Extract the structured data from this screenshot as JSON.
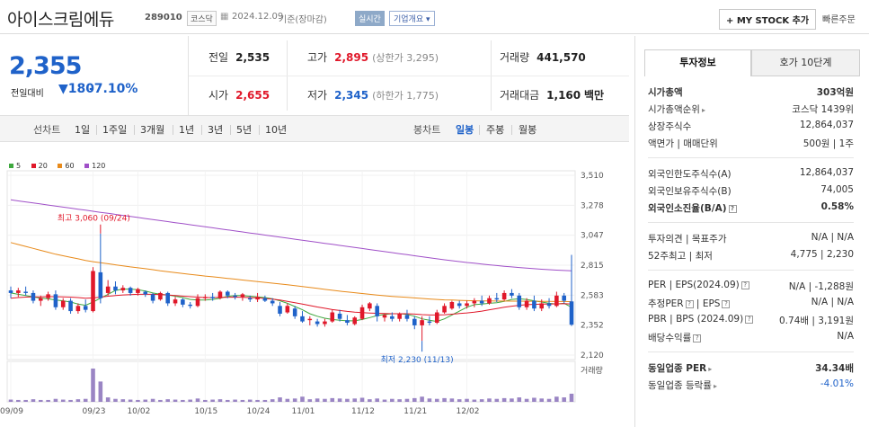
{
  "header": {
    "company": "아이스크림에듀",
    "code": "289010",
    "market": "코스닥",
    "date": "2024.12.09",
    "basis": "기준(장마감)",
    "realtime": "실시간",
    "company_info": "기업개요",
    "my_stock": "+ MY STOCK 추가",
    "quick_order": "빠른주문"
  },
  "summary": {
    "price": "2,355",
    "change_label": "전일대비",
    "change_value": "▼180",
    "change_pct": "-7.10%",
    "prev_label": "전일",
    "prev": "2,535",
    "high_label": "고가",
    "high": "2,895",
    "upper": "(상한가 3,295)",
    "volume_label": "거래량",
    "volume": "441,570",
    "open_label": "시가",
    "open": "2,655",
    "low_label": "저가",
    "low": "2,345",
    "lower": "(하한가 1,775)",
    "amount_label": "거래대금",
    "amount": "1,160",
    "amount_unit": "백만"
  },
  "toolbar": {
    "line_chart": "선차트",
    "d1": "1일",
    "w1": "1주일",
    "m3": "3개월",
    "y1": "1년",
    "y3": "3년",
    "y5": "5년",
    "y10": "10년",
    "candle": "봉차트",
    "daily": "일봉",
    "weekly": "주봉",
    "monthly": "월봉"
  },
  "chart_data": {
    "type": "candlestick",
    "legend": [
      "5",
      "20",
      "60",
      "120"
    ],
    "legend_colors": [
      "#3ea83e",
      "#e0182a",
      "#e88a1a",
      "#a050c8"
    ],
    "y_ticks": [
      "3,510",
      "3,278",
      "3,047",
      "2,815",
      "2,583",
      "2,352",
      "2,120"
    ],
    "x_ticks": [
      "09/09",
      "09/23",
      "10/02",
      "10/15",
      "10/24",
      "11/01",
      "11/12",
      "11/21",
      "12/02"
    ],
    "volume_label": "거래량",
    "high_annotation": "최고 3,060 (09/24)",
    "low_annotation": "최저 2,230 (11/13)",
    "ylim": [
      2120,
      3510
    ],
    "candles": [
      [
        2620,
        2650,
        2560,
        2600
      ],
      [
        2600,
        2640,
        2570,
        2620
      ],
      [
        2610,
        2650,
        2580,
        2600
      ],
      [
        2600,
        2620,
        2520,
        2540
      ],
      [
        2540,
        2580,
        2500,
        2560
      ],
      [
        2560,
        2610,
        2540,
        2590
      ],
      [
        2590,
        2620,
        2470,
        2490
      ],
      [
        2490,
        2560,
        2470,
        2540
      ],
      [
        2540,
        2560,
        2440,
        2460
      ],
      [
        2460,
        2520,
        2440,
        2500
      ],
      [
        2500,
        2550,
        2450,
        2470
      ],
      [
        2460,
        2800,
        2450,
        2770
      ],
      [
        2760,
        3060,
        2520,
        2560
      ],
      [
        2600,
        2700,
        2580,
        2650
      ],
      [
        2650,
        2690,
        2590,
        2620
      ],
      [
        2620,
        2660,
        2600,
        2640
      ],
      [
        2640,
        2650,
        2580,
        2600
      ],
      [
        2600,
        2640,
        2580,
        2630
      ],
      [
        2610,
        2620,
        2570,
        2590
      ],
      [
        2590,
        2600,
        2520,
        2540
      ],
      [
        2550,
        2610,
        2540,
        2600
      ],
      [
        2600,
        2610,
        2500,
        2520
      ],
      [
        2520,
        2570,
        2500,
        2550
      ],
      [
        2550,
        2560,
        2490,
        2510
      ],
      [
        2510,
        2530,
        2480,
        2500
      ],
      [
        2500,
        2590,
        2490,
        2560
      ],
      [
        2560,
        2590,
        2540,
        2570
      ],
      [
        2570,
        2600,
        2540,
        2560
      ],
      [
        2560,
        2620,
        2550,
        2610
      ],
      [
        2610,
        2620,
        2560,
        2580
      ],
      [
        2580,
        2600,
        2550,
        2570
      ],
      [
        2570,
        2600,
        2540,
        2590
      ],
      [
        2560,
        2580,
        2530,
        2550
      ],
      [
        2550,
        2600,
        2530,
        2570
      ],
      [
        2560,
        2580,
        2530,
        2540
      ],
      [
        2540,
        2560,
        2500,
        2520
      ],
      [
        2500,
        2530,
        2420,
        2440
      ],
      [
        2450,
        2520,
        2440,
        2500
      ],
      [
        2480,
        2500,
        2400,
        2420
      ],
      [
        2420,
        2460,
        2370,
        2380
      ],
      [
        2390,
        2420,
        2350,
        2400
      ],
      [
        2380,
        2400,
        2340,
        2360
      ],
      [
        2360,
        2400,
        2340,
        2380
      ],
      [
        2380,
        2470,
        2370,
        2450
      ],
      [
        2440,
        2470,
        2380,
        2400
      ],
      [
        2390,
        2430,
        2350,
        2370
      ],
      [
        2360,
        2420,
        2350,
        2410
      ],
      [
        2400,
        2510,
        2390,
        2490
      ],
      [
        2480,
        2530,
        2460,
        2520
      ],
      [
        2500,
        2520,
        2380,
        2420
      ],
      [
        2410,
        2440,
        2380,
        2430
      ],
      [
        2420,
        2450,
        2380,
        2400
      ],
      [
        2400,
        2450,
        2380,
        2440
      ],
      [
        2430,
        2470,
        2380,
        2400
      ],
      [
        2400,
        2420,
        2320,
        2350
      ],
      [
        2350,
        2420,
        2230,
        2390
      ],
      [
        2380,
        2420,
        2350,
        2370
      ],
      [
        2370,
        2470,
        2360,
        2450
      ],
      [
        2450,
        2520,
        2440,
        2500
      ],
      [
        2480,
        2540,
        2470,
        2530
      ],
      [
        2520,
        2540,
        2480,
        2500
      ],
      [
        2500,
        2540,
        2480,
        2520
      ],
      [
        2520,
        2560,
        2490,
        2540
      ],
      [
        2540,
        2580,
        2500,
        2520
      ],
      [
        2520,
        2580,
        2510,
        2560
      ],
      [
        2560,
        2600,
        2530,
        2550
      ],
      [
        2550,
        2620,
        2540,
        2600
      ],
      [
        2600,
        2630,
        2560,
        2580
      ],
      [
        2580,
        2600,
        2470,
        2490
      ],
      [
        2490,
        2560,
        2470,
        2540
      ],
      [
        2540,
        2580,
        2460,
        2480
      ],
      [
        2480,
        2550,
        2460,
        2520
      ],
      [
        2520,
        2560,
        2480,
        2500
      ],
      [
        2500,
        2610,
        2490,
        2580
      ],
      [
        2580,
        2600,
        2520,
        2540
      ],
      [
        2535,
        2895,
        2345,
        2355
      ]
    ],
    "ma": {
      "5": [
        2600,
        2590,
        2580,
        2570,
        2560,
        2555,
        2545,
        2540,
        2530,
        2515,
        2505,
        2530,
        2560,
        2590,
        2620,
        2630,
        2630,
        2625,
        2615,
        2600,
        2590,
        2585,
        2575,
        2565,
        2550,
        2545,
        2545,
        2550,
        2560,
        2575,
        2580,
        2580,
        2575,
        2570,
        2565,
        2555,
        2540,
        2520,
        2495,
        2470,
        2440,
        2420,
        2405,
        2395,
        2390,
        2385,
        2385,
        2395,
        2410,
        2425,
        2435,
        2440,
        2440,
        2435,
        2420,
        2400,
        2390,
        2380,
        2400,
        2430,
        2460,
        2490,
        2510,
        2515,
        2520,
        2525,
        2535,
        2550,
        2555,
        2550,
        2540,
        2530,
        2520,
        2515,
        2520,
        2490
      ],
      "20": [
        2560,
        2565,
        2568,
        2570,
        2570,
        2572,
        2572,
        2570,
        2568,
        2565,
        2560,
        2562,
        2568,
        2575,
        2580,
        2585,
        2588,
        2590,
        2590,
        2590,
        2588,
        2585,
        2580,
        2576,
        2572,
        2568,
        2565,
        2565,
        2566,
        2567,
        2568,
        2567,
        2565,
        2562,
        2558,
        2552,
        2545,
        2535,
        2525,
        2515,
        2503,
        2492,
        2482,
        2472,
        2465,
        2458,
        2452,
        2448,
        2445,
        2443,
        2441,
        2440,
        2440,
        2440,
        2437,
        2433,
        2430,
        2430,
        2432,
        2436,
        2441,
        2446,
        2452,
        2460,
        2470,
        2480,
        2490,
        2498,
        2505,
        2510,
        2512,
        2514,
        2515,
        2516,
        2518,
        2515
      ],
      "60": [
        2990,
        2975,
        2960,
        2945,
        2930,
        2915,
        2900,
        2888,
        2876,
        2864,
        2852,
        2842,
        2834,
        2826,
        2818,
        2810,
        2802,
        2795,
        2788,
        2780,
        2772,
        2765,
        2758,
        2751,
        2744,
        2738,
        2731,
        2725,
        2719,
        2713,
        2707,
        2700,
        2694,
        2688,
        2682,
        2676,
        2670,
        2664,
        2657,
        2650,
        2643,
        2636,
        2628,
        2621,
        2614,
        2608,
        2602,
        2596,
        2590,
        2584,
        2579,
        2574,
        2570,
        2566,
        2562,
        2558,
        2554,
        2550,
        2547,
        2545,
        2543,
        2541,
        2540,
        2539,
        2539,
        2538,
        2538,
        2537,
        2537,
        2536,
        2536,
        2535,
        2535,
        2534,
        2534,
        2533
      ],
      "120": [
        3320,
        3312,
        3304,
        3296,
        3288,
        3280,
        3272,
        3264,
        3256,
        3248,
        3240,
        3232,
        3224,
        3216,
        3208,
        3200,
        3192,
        3184,
        3176,
        3168,
        3160,
        3152,
        3144,
        3136,
        3128,
        3120,
        3112,
        3104,
        3096,
        3088,
        3080,
        3072,
        3064,
        3056,
        3048,
        3040,
        3032,
        3024,
        3016,
        3008,
        3000,
        2992,
        2984,
        2976,
        2968,
        2960,
        2952,
        2944,
        2936,
        2928,
        2920,
        2912,
        2904,
        2896,
        2888,
        2880,
        2872,
        2864,
        2857,
        2850,
        2843,
        2836,
        2830,
        2824,
        2818,
        2812,
        2807,
        2802,
        2797,
        2792,
        2788,
        2784,
        2780,
        2777,
        2774,
        2771
      ]
    },
    "volume": [
      6,
      5,
      5,
      7,
      5,
      5,
      8,
      6,
      5,
      7,
      8,
      90,
      55,
      12,
      8,
      7,
      6,
      5,
      6,
      8,
      5,
      7,
      6,
      5,
      6,
      9,
      5,
      6,
      7,
      5,
      6,
      5,
      6,
      5,
      5,
      7,
      12,
      8,
      9,
      14,
      7,
      9,
      8,
      10,
      9,
      8,
      9,
      11,
      7,
      9,
      6,
      8,
      7,
      8,
      10,
      14,
      9,
      8,
      10,
      9,
      7,
      8,
      6,
      7,
      9,
      8,
      10,
      9,
      12,
      8,
      11,
      9,
      8,
      14,
      12,
      22
    ]
  },
  "info": {
    "tab1": "투자정보",
    "tab2": "호가 10단계",
    "mcap_k": "시가총액",
    "mcap_v": "303억원",
    "mrank_k": "시가총액순위",
    "mrank_v": "코스닥 1439위",
    "shares_k": "상장주식수",
    "shares_v": "12,864,037",
    "face_k": "액면가",
    "face_sep": "매매단위",
    "face_v1": "500원",
    "face_v2": "1주",
    "flimit_k": "외국인한도주식수(A)",
    "flimit_v": "12,864,037",
    "fhold_k": "외국인보유주식수(B)",
    "fhold_v": "74,005",
    "fratio_k": "외국인소진율(B/A)",
    "fratio_v": "0.58%",
    "opinion_k": "투자의견",
    "opinion_k2": "목표주가",
    "opinion_v1": "N/A",
    "opinion_v2": "N/A",
    "w52_k": "52주최고",
    "w52_k2": "최저",
    "w52_v1": "4,775",
    "w52_v2": "2,230",
    "per_k": "PER",
    "per_k2": "EPS(2024.09)",
    "per_v1": "N/A",
    "per_v2": "-1,288원",
    "eper_k": "추정PER",
    "eper_k2": "EPS",
    "eper_v1": "N/A",
    "eper_v2": "N/A",
    "pbr_k": "PBR",
    "pbr_k2": "BPS (2024.09)",
    "pbr_v1": "0.74배",
    "pbr_v2": "3,191원",
    "div_k": "배당수익률",
    "div_v": "N/A",
    "ind_per_k": "동일업종 PER",
    "ind_per_v": "34.34배",
    "ind_rate_k": "동일업종 등락률",
    "ind_rate_v": "-4.01%"
  }
}
